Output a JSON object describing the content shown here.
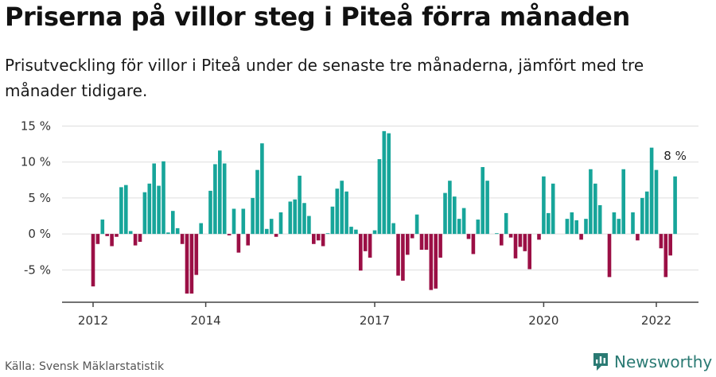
{
  "title": "Priserna på villor steg i Piteå förra månaden",
  "subtitle": "Prisutveckling för villor i Piteå under de senaste tre månaderna, jämfört med tre månader tidigare.",
  "source": "Källa: Svensk Mäklarstatistik",
  "brand": {
    "name": "Newsworthy",
    "icon": "newsworthy-logo-icon"
  },
  "colors": {
    "positive": "#17a59a",
    "negative": "#9b0f45",
    "grid": "#dddddd",
    "axis": "#444444",
    "brand": "#2a7a73"
  },
  "chart_data": {
    "type": "bar",
    "title": "Prisutveckling villor Piteå",
    "xlabel": "",
    "ylabel": "",
    "ylim": [
      -9.5,
      15.5
    ],
    "y_ticks": [
      15,
      10,
      5,
      0,
      -5
    ],
    "y_tick_labels": [
      "15 %",
      "10 %",
      "5 %",
      "0 %",
      "-5 %"
    ],
    "x_ticks": [
      2012,
      2014,
      2017,
      2020,
      2022
    ],
    "x_tick_labels": [
      "2012",
      "2014",
      "2017",
      "2020",
      "2022"
    ],
    "start": {
      "year": 2012,
      "month": 1
    },
    "values": [
      -7.3,
      -1.4,
      2.0,
      -0.3,
      -1.7,
      -0.4,
      6.5,
      6.8,
      0.4,
      -1.6,
      -1.1,
      5.8,
      7.0,
      9.8,
      6.7,
      10.1,
      0.2,
      3.2,
      0.8,
      -1.4,
      -8.3,
      -8.3,
      -5.7,
      1.5,
      0,
      6.0,
      9.7,
      11.6,
      9.8,
      -0.2,
      3.5,
      -2.6,
      3.5,
      -1.6,
      5.0,
      8.9,
      12.6,
      0.7,
      2.1,
      -0.4,
      3.0,
      0,
      4.5,
      4.8,
      8.1,
      4.3,
      2.5,
      -1.4,
      -0.9,
      -1.7,
      0.1,
      3.8,
      6.3,
      7.4,
      5.9,
      1.0,
      0.6,
      -5.1,
      -2.4,
      -3.3,
      0.5,
      10.4,
      14.3,
      14.0,
      1.5,
      -5.8,
      -6.5,
      -2.9,
      -0.6,
      2.7,
      -2.2,
      -2.2,
      -7.8,
      -7.6,
      -3.3,
      5.7,
      7.4,
      5.2,
      2.1,
      3.6,
      -0.7,
      -2.8,
      2.0,
      9.3,
      7.4,
      0,
      0.1,
      -1.6,
      2.9,
      -0.5,
      -3.4,
      -1.8,
      -2.4,
      -4.9,
      0,
      -0.8,
      8.0,
      2.9,
      7.0,
      0,
      0,
      2.1,
      3.0,
      1.9,
      -0.8,
      2.1,
      9.0,
      7.0,
      4.0,
      0,
      -6.0,
      3.0,
      2.1,
      9.0,
      0,
      3.0,
      -0.9,
      5.0,
      5.9,
      12.0,
      8.9,
      -2.0,
      -6.0,
      -3.0,
      8.0
    ],
    "annotation": {
      "label": "8 %",
      "value": 8
    }
  }
}
